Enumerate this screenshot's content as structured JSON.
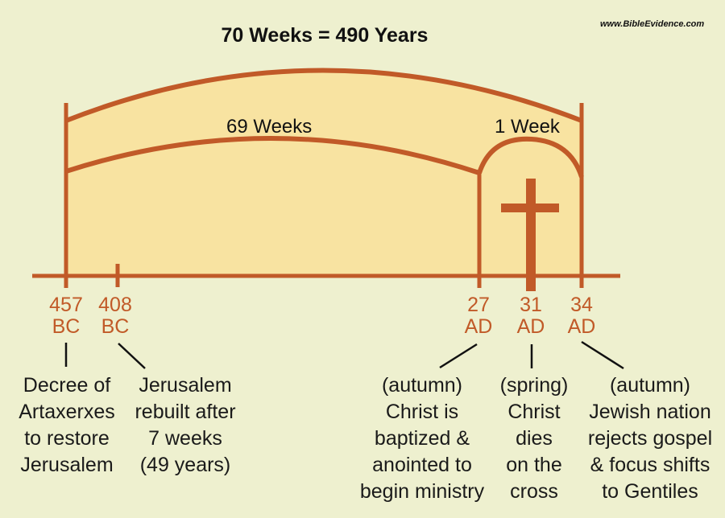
{
  "title": "70 Weeks = 490 Years",
  "source": "www.BibleEvidence.com",
  "spans": {
    "sixty_nine_weeks": "69 Weeks",
    "one_week": "1 Week"
  },
  "ticks": [
    {
      "year": "457",
      "era": "BC"
    },
    {
      "year": "408",
      "era": "BC"
    },
    {
      "year": "27",
      "era": "AD"
    },
    {
      "year": "31",
      "era": "AD"
    },
    {
      "year": "34",
      "era": "AD"
    }
  ],
  "events": [
    {
      "lines": [
        "Decree of",
        "Artaxerxes",
        "to restore",
        "Jerusalem"
      ]
    },
    {
      "lines": [
        "Jerusalem",
        "rebuilt after",
        "7 weeks",
        "(49 years)"
      ]
    },
    {
      "lines": [
        "(autumn)",
        "Christ is",
        "baptized &",
        "anointed to",
        "begin ministry"
      ]
    },
    {
      "lines": [
        "(spring)",
        "Christ",
        "dies",
        "on the",
        "cross"
      ]
    },
    {
      "lines": [
        "(autumn)",
        "Jewish nation",
        "rejects gospel",
        "& focus shifts",
        "to Gentiles"
      ]
    }
  ],
  "colors": {
    "background": "#eef0cf",
    "fill": "#f8e3a1",
    "accent": "#c15a28",
    "text": "#111111"
  },
  "icons": {
    "cross": "cross-icon"
  }
}
